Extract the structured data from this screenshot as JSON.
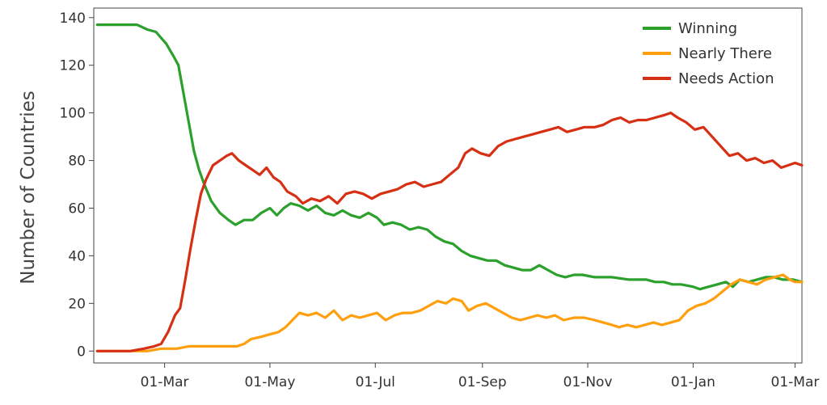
{
  "chart_data": {
    "type": "line",
    "title": "",
    "xlabel": "",
    "ylabel": "Number of Countries",
    "ylim": [
      -5,
      144
    ],
    "xlim": [
      "2020-01-20",
      "2021-03-05"
    ],
    "x_ticks": [
      {
        "date": "2020-03-01",
        "label": "01-Mar"
      },
      {
        "date": "2020-05-01",
        "label": "01-May"
      },
      {
        "date": "2020-07-01",
        "label": "01-Jul"
      },
      {
        "date": "2020-09-01",
        "label": "01-Sep"
      },
      {
        "date": "2020-11-01",
        "label": "01-Nov"
      },
      {
        "date": "2021-01-01",
        "label": "01-Jan"
      },
      {
        "date": "2021-03-01",
        "label": "01-Mar"
      }
    ],
    "y_ticks": [
      0,
      20,
      40,
      60,
      80,
      100,
      120,
      140
    ],
    "grid": false,
    "legend_position": "top-right",
    "series": [
      {
        "name": "Winning",
        "color": "#2ca02c",
        "points": [
          [
            "2020-01-22",
            137
          ],
          [
            "2020-02-04",
            137
          ],
          [
            "2020-02-14",
            137
          ],
          [
            "2020-02-20",
            135
          ],
          [
            "2020-02-25",
            134
          ],
          [
            "2020-03-02",
            129
          ],
          [
            "2020-03-06",
            124
          ],
          [
            "2020-03-09",
            120
          ],
          [
            "2020-03-12",
            108
          ],
          [
            "2020-03-15",
            96
          ],
          [
            "2020-03-18",
            84
          ],
          [
            "2020-03-21",
            76
          ],
          [
            "2020-03-24",
            70
          ],
          [
            "2020-03-28",
            63
          ],
          [
            "2020-04-02",
            58
          ],
          [
            "2020-04-07",
            55
          ],
          [
            "2020-04-11",
            53
          ],
          [
            "2020-04-16",
            55
          ],
          [
            "2020-04-21",
            55
          ],
          [
            "2020-04-26",
            58
          ],
          [
            "2020-05-01",
            60
          ],
          [
            "2020-05-05",
            57
          ],
          [
            "2020-05-09",
            60
          ],
          [
            "2020-05-13",
            62
          ],
          [
            "2020-05-18",
            61
          ],
          [
            "2020-05-23",
            59
          ],
          [
            "2020-05-28",
            61
          ],
          [
            "2020-06-02",
            58
          ],
          [
            "2020-06-07",
            57
          ],
          [
            "2020-06-12",
            59
          ],
          [
            "2020-06-17",
            57
          ],
          [
            "2020-06-22",
            56
          ],
          [
            "2020-06-27",
            58
          ],
          [
            "2020-07-02",
            56
          ],
          [
            "2020-07-06",
            53
          ],
          [
            "2020-07-11",
            54
          ],
          [
            "2020-07-16",
            53
          ],
          [
            "2020-07-21",
            51
          ],
          [
            "2020-07-26",
            52
          ],
          [
            "2020-07-31",
            51
          ],
          [
            "2020-08-05",
            48
          ],
          [
            "2020-08-10",
            46
          ],
          [
            "2020-08-15",
            45
          ],
          [
            "2020-08-20",
            42
          ],
          [
            "2020-08-25",
            40
          ],
          [
            "2020-08-30",
            39
          ],
          [
            "2020-09-04",
            38
          ],
          [
            "2020-09-09",
            38
          ],
          [
            "2020-09-14",
            36
          ],
          [
            "2020-09-19",
            35
          ],
          [
            "2020-09-24",
            34
          ],
          [
            "2020-09-29",
            34
          ],
          [
            "2020-10-04",
            36
          ],
          [
            "2020-10-09",
            34
          ],
          [
            "2020-10-14",
            32
          ],
          [
            "2020-10-19",
            31
          ],
          [
            "2020-10-24",
            32
          ],
          [
            "2020-10-29",
            32
          ],
          [
            "2020-11-05",
            31
          ],
          [
            "2020-11-15",
            31
          ],
          [
            "2020-11-25",
            30
          ],
          [
            "2020-12-05",
            30
          ],
          [
            "2020-12-10",
            29
          ],
          [
            "2020-12-15",
            29
          ],
          [
            "2020-12-20",
            28
          ],
          [
            "2020-12-25",
            28
          ],
          [
            "2021-01-01",
            27
          ],
          [
            "2021-01-05",
            26
          ],
          [
            "2021-01-10",
            27
          ],
          [
            "2021-01-15",
            28
          ],
          [
            "2021-01-20",
            29
          ],
          [
            "2021-01-24",
            27
          ],
          [
            "2021-01-28",
            30
          ],
          [
            "2021-02-02",
            29
          ],
          [
            "2021-02-07",
            30
          ],
          [
            "2021-02-12",
            31
          ],
          [
            "2021-02-17",
            31
          ],
          [
            "2021-02-22",
            30
          ],
          [
            "2021-02-28",
            30
          ],
          [
            "2021-03-05",
            29
          ]
        ]
      },
      {
        "name": "Nearly There",
        "color": "#ff9f0e",
        "points": [
          [
            "2020-01-22",
            0
          ],
          [
            "2020-02-10",
            0
          ],
          [
            "2020-02-20",
            0
          ],
          [
            "2020-02-28",
            1
          ],
          [
            "2020-03-08",
            1
          ],
          [
            "2020-03-15",
            2
          ],
          [
            "2020-03-25",
            2
          ],
          [
            "2020-04-05",
            2
          ],
          [
            "2020-04-12",
            2
          ],
          [
            "2020-04-16",
            3
          ],
          [
            "2020-04-20",
            5
          ],
          [
            "2020-04-26",
            6
          ],
          [
            "2020-05-01",
            7
          ],
          [
            "2020-05-06",
            8
          ],
          [
            "2020-05-10",
            10
          ],
          [
            "2020-05-14",
            13
          ],
          [
            "2020-05-18",
            16
          ],
          [
            "2020-05-23",
            15
          ],
          [
            "2020-05-28",
            16
          ],
          [
            "2020-06-02",
            14
          ],
          [
            "2020-06-07",
            17
          ],
          [
            "2020-06-12",
            13
          ],
          [
            "2020-06-17",
            15
          ],
          [
            "2020-06-22",
            14
          ],
          [
            "2020-06-27",
            15
          ],
          [
            "2020-07-02",
            16
          ],
          [
            "2020-07-07",
            13
          ],
          [
            "2020-07-12",
            15
          ],
          [
            "2020-07-17",
            16
          ],
          [
            "2020-07-22",
            16
          ],
          [
            "2020-07-27",
            17
          ],
          [
            "2020-08-01",
            19
          ],
          [
            "2020-08-06",
            21
          ],
          [
            "2020-08-11",
            20
          ],
          [
            "2020-08-15",
            22
          ],
          [
            "2020-08-20",
            21
          ],
          [
            "2020-08-24",
            17
          ],
          [
            "2020-08-29",
            19
          ],
          [
            "2020-09-03",
            20
          ],
          [
            "2020-09-08",
            18
          ],
          [
            "2020-09-13",
            16
          ],
          [
            "2020-09-18",
            14
          ],
          [
            "2020-09-23",
            13
          ],
          [
            "2020-09-28",
            14
          ],
          [
            "2020-10-03",
            15
          ],
          [
            "2020-10-08",
            14
          ],
          [
            "2020-10-13",
            15
          ],
          [
            "2020-10-18",
            13
          ],
          [
            "2020-10-24",
            14
          ],
          [
            "2020-10-30",
            14
          ],
          [
            "2020-11-05",
            13
          ],
          [
            "2020-11-10",
            12
          ],
          [
            "2020-11-15",
            11
          ],
          [
            "2020-11-19",
            10
          ],
          [
            "2020-11-24",
            11
          ],
          [
            "2020-11-29",
            10
          ],
          [
            "2020-12-04",
            11
          ],
          [
            "2020-12-09",
            12
          ],
          [
            "2020-12-14",
            11
          ],
          [
            "2020-12-19",
            12
          ],
          [
            "2020-12-24",
            13
          ],
          [
            "2020-12-29",
            17
          ],
          [
            "2021-01-03",
            19
          ],
          [
            "2021-01-08",
            20
          ],
          [
            "2021-01-13",
            22
          ],
          [
            "2021-01-18",
            25
          ],
          [
            "2021-01-23",
            28
          ],
          [
            "2021-01-28",
            30
          ],
          [
            "2021-02-02",
            29
          ],
          [
            "2021-02-07",
            28
          ],
          [
            "2021-02-12",
            30
          ],
          [
            "2021-02-17",
            31
          ],
          [
            "2021-02-22",
            32
          ],
          [
            "2021-02-26",
            30
          ],
          [
            "2021-03-01",
            29
          ],
          [
            "2021-03-05",
            29
          ]
        ]
      },
      {
        "name": "Needs Action",
        "color": "#d62f14",
        "points": [
          [
            "2020-01-22",
            0
          ],
          [
            "2020-02-10",
            0
          ],
          [
            "2020-02-18",
            1
          ],
          [
            "2020-02-24",
            2
          ],
          [
            "2020-02-28",
            3
          ],
          [
            "2020-03-03",
            8
          ],
          [
            "2020-03-07",
            15
          ],
          [
            "2020-03-10",
            18
          ],
          [
            "2020-03-13",
            30
          ],
          [
            "2020-03-16",
            43
          ],
          [
            "2020-03-19",
            55
          ],
          [
            "2020-03-22",
            66
          ],
          [
            "2020-03-25",
            72
          ],
          [
            "2020-03-29",
            78
          ],
          [
            "2020-04-02",
            80
          ],
          [
            "2020-04-06",
            82
          ],
          [
            "2020-04-09",
            83
          ],
          [
            "2020-04-13",
            80
          ],
          [
            "2020-04-17",
            78
          ],
          [
            "2020-04-21",
            76
          ],
          [
            "2020-04-25",
            74
          ],
          [
            "2020-04-29",
            77
          ],
          [
            "2020-05-03",
            73
          ],
          [
            "2020-05-07",
            71
          ],
          [
            "2020-05-11",
            67
          ],
          [
            "2020-05-16",
            65
          ],
          [
            "2020-05-20",
            62
          ],
          [
            "2020-05-25",
            64
          ],
          [
            "2020-05-30",
            63
          ],
          [
            "2020-06-04",
            65
          ],
          [
            "2020-06-09",
            62
          ],
          [
            "2020-06-14",
            66
          ],
          [
            "2020-06-19",
            67
          ],
          [
            "2020-06-24",
            66
          ],
          [
            "2020-06-29",
            64
          ],
          [
            "2020-07-04",
            66
          ],
          [
            "2020-07-09",
            67
          ],
          [
            "2020-07-14",
            68
          ],
          [
            "2020-07-19",
            70
          ],
          [
            "2020-07-24",
            71
          ],
          [
            "2020-07-29",
            69
          ],
          [
            "2020-08-03",
            70
          ],
          [
            "2020-08-08",
            71
          ],
          [
            "2020-08-13",
            74
          ],
          [
            "2020-08-18",
            77
          ],
          [
            "2020-08-22",
            83
          ],
          [
            "2020-08-26",
            85
          ],
          [
            "2020-08-31",
            83
          ],
          [
            "2020-09-05",
            82
          ],
          [
            "2020-09-10",
            86
          ],
          [
            "2020-09-15",
            88
          ],
          [
            "2020-09-20",
            89
          ],
          [
            "2020-09-25",
            90
          ],
          [
            "2020-09-30",
            91
          ],
          [
            "2020-10-05",
            92
          ],
          [
            "2020-10-10",
            93
          ],
          [
            "2020-10-15",
            94
          ],
          [
            "2020-10-20",
            92
          ],
          [
            "2020-10-25",
            93
          ],
          [
            "2020-10-30",
            94
          ],
          [
            "2020-11-05",
            94
          ],
          [
            "2020-11-10",
            95
          ],
          [
            "2020-11-15",
            97
          ],
          [
            "2020-11-20",
            98
          ],
          [
            "2020-11-25",
            96
          ],
          [
            "2020-11-30",
            97
          ],
          [
            "2020-12-05",
            97
          ],
          [
            "2020-12-10",
            98
          ],
          [
            "2020-12-15",
            99
          ],
          [
            "2020-12-19",
            100
          ],
          [
            "2020-12-23",
            98
          ],
          [
            "2020-12-28",
            96
          ],
          [
            "2021-01-02",
            93
          ],
          [
            "2021-01-07",
            94
          ],
          [
            "2021-01-12",
            90
          ],
          [
            "2021-01-17",
            86
          ],
          [
            "2021-01-22",
            82
          ],
          [
            "2021-01-27",
            83
          ],
          [
            "2021-02-01",
            80
          ],
          [
            "2021-02-06",
            81
          ],
          [
            "2021-02-11",
            79
          ],
          [
            "2021-02-16",
            80
          ],
          [
            "2021-02-21",
            77
          ],
          [
            "2021-02-25",
            78
          ],
          [
            "2021-03-01",
            79
          ],
          [
            "2021-03-05",
            78
          ]
        ]
      }
    ]
  }
}
